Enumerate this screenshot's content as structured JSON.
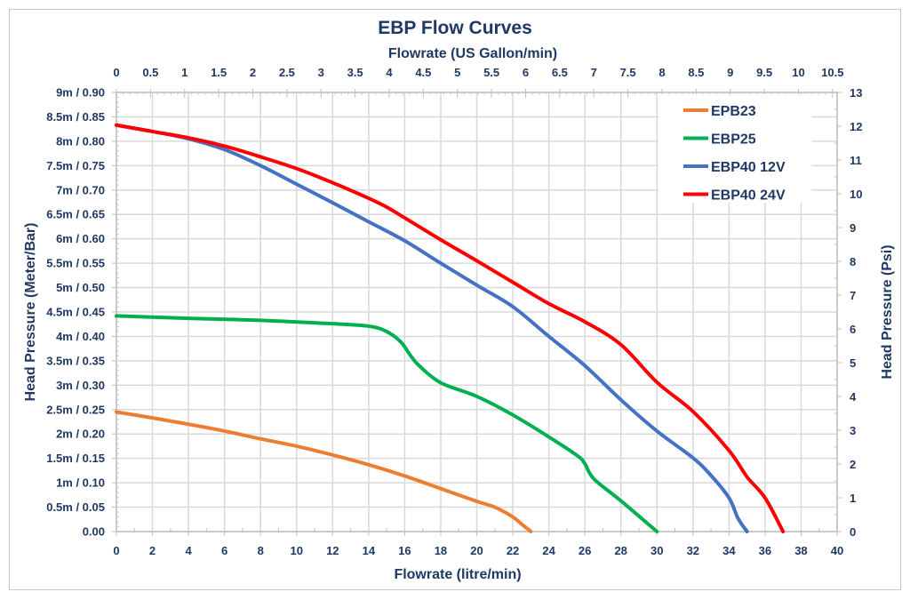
{
  "chart_data": {
    "type": "line",
    "title": "EBP Flow Curves",
    "xlabel": "Flowrate (litre/min)",
    "x2label": "Flowrate (US Gallon/min)",
    "ylabel": "Head Pressure (Meter/Bar)",
    "y2label": "Head Pressure (Psi)",
    "xlim": [
      0,
      40
    ],
    "ylim": [
      0,
      0.9
    ],
    "x2lim": [
      0,
      10.567
    ],
    "y2lim": [
      0,
      13
    ],
    "grid": true,
    "legend_position": "top-right",
    "x_ticks": [
      "0",
      "2",
      "4",
      "6",
      "8",
      "10",
      "12",
      "14",
      "16",
      "18",
      "20",
      "22",
      "24",
      "26",
      "28",
      "30",
      "32",
      "34",
      "36",
      "38",
      "40"
    ],
    "x2_ticks": [
      "0",
      "0.5",
      "1",
      "1.5",
      "2",
      "2.5",
      "3",
      "3.5",
      "4",
      "4.5",
      "5",
      "5.5",
      "6",
      "6.5",
      "7",
      "7.5",
      "8",
      "8.5",
      "9",
      "9.5",
      "10",
      "10.5"
    ],
    "y_ticks": [
      "0.00",
      "0.5m / 0.05",
      "1m / 0.10",
      "1.5m / 0.15",
      "2m / 0.20",
      "2.5m / 0.25",
      "3m / 0.30",
      "3.5m / 0.35",
      "4m / 0.40",
      "4.5m / 0.45",
      "5m / 0.50",
      "5.5m / 0.55",
      "6m / 0.60",
      "6.5m / 0.65",
      "7m / 0.70",
      "7.5m / 0.75",
      "8m / 0.80",
      "8.5m / 0.85",
      "9m /  0.90"
    ],
    "y2_ticks": [
      "0",
      "1",
      "2",
      "3",
      "4",
      "5",
      "6",
      "7",
      "8",
      "9",
      "10",
      "11",
      "12",
      "13"
    ],
    "series": [
      {
        "name": "EPB23",
        "color": "#ED7D31",
        "x": [
          0,
          2,
          4,
          6,
          8,
          10,
          12,
          14,
          16,
          18,
          20,
          21,
          22,
          22.5,
          23
        ],
        "y": [
          0.245,
          0.233,
          0.22,
          0.206,
          0.19,
          0.175,
          0.157,
          0.137,
          0.114,
          0.088,
          0.062,
          0.05,
          0.03,
          0.015,
          0
        ]
      },
      {
        "name": "EBP25",
        "color": "#00B050",
        "x": [
          0,
          4,
          8,
          12,
          14,
          15,
          15.8,
          16.3,
          16.8,
          18,
          20,
          22,
          24,
          25.6,
          26,
          26.5,
          28,
          30
        ],
        "y": [
          0.442,
          0.437,
          0.433,
          0.426,
          0.421,
          0.41,
          0.388,
          0.362,
          0.34,
          0.305,
          0.277,
          0.239,
          0.194,
          0.155,
          0.139,
          0.108,
          0.063,
          0
        ]
      },
      {
        "name": "EBP40 12V",
        "color": "#4472C4",
        "x": [
          0,
          2,
          4,
          6,
          8,
          10,
          12,
          14,
          16,
          18,
          20,
          22,
          24,
          26,
          28,
          30,
          32,
          33,
          34,
          34.5,
          35
        ],
        "y": [
          0.833,
          0.82,
          0.805,
          0.783,
          0.75,
          0.712,
          0.674,
          0.635,
          0.596,
          0.55,
          0.505,
          0.461,
          0.4,
          0.34,
          0.27,
          0.206,
          0.151,
          0.115,
          0.069,
          0.027,
          0
        ]
      },
      {
        "name": "EBP40 24V",
        "color": "#FF0000",
        "x": [
          0,
          2,
          4,
          6,
          8,
          10,
          12,
          14,
          15,
          16,
          18,
          20,
          22,
          24,
          26,
          28,
          30,
          32,
          34,
          35,
          36,
          37
        ],
        "y": [
          0.833,
          0.82,
          0.807,
          0.79,
          0.768,
          0.744,
          0.715,
          0.683,
          0.665,
          0.643,
          0.598,
          0.555,
          0.511,
          0.467,
          0.43,
          0.383,
          0.306,
          0.246,
          0.166,
          0.112,
          0.069,
          0
        ]
      }
    ]
  }
}
